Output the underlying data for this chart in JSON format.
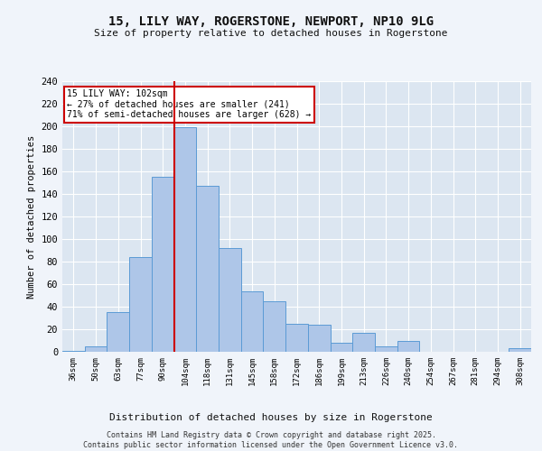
{
  "title_line1": "15, LILY WAY, ROGERSTONE, NEWPORT, NP10 9LG",
  "title_line2": "Size of property relative to detached houses in Rogerstone",
  "xlabel": "Distribution of detached houses by size in Rogerstone",
  "ylabel": "Number of detached properties",
  "categories": [
    "36sqm",
    "50sqm",
    "63sqm",
    "77sqm",
    "90sqm",
    "104sqm",
    "118sqm",
    "131sqm",
    "145sqm",
    "158sqm",
    "172sqm",
    "186sqm",
    "199sqm",
    "213sqm",
    "226sqm",
    "240sqm",
    "254sqm",
    "267sqm",
    "281sqm",
    "294sqm",
    "308sqm"
  ],
  "values": [
    1,
    5,
    35,
    84,
    155,
    199,
    147,
    92,
    54,
    45,
    25,
    24,
    8,
    17,
    5,
    10,
    0,
    0,
    0,
    0,
    3
  ],
  "bar_color": "#aec6e8",
  "bar_edge_color": "#5b9bd5",
  "background_color": "#dce6f1",
  "grid_color": "#ffffff",
  "vline_color": "#cc0000",
  "annotation_text": "15 LILY WAY: 102sqm\n← 27% of detached houses are smaller (241)\n71% of semi-detached houses are larger (628) →",
  "annotation_box_color": "#ffffff",
  "annotation_box_edge": "#cc0000",
  "footer": "Contains HM Land Registry data © Crown copyright and database right 2025.\nContains public sector information licensed under the Open Government Licence v3.0.",
  "fig_bg": "#f0f4fa",
  "ylim": [
    0,
    240
  ],
  "yticks": [
    0,
    20,
    40,
    60,
    80,
    100,
    120,
    140,
    160,
    180,
    200,
    220,
    240
  ]
}
